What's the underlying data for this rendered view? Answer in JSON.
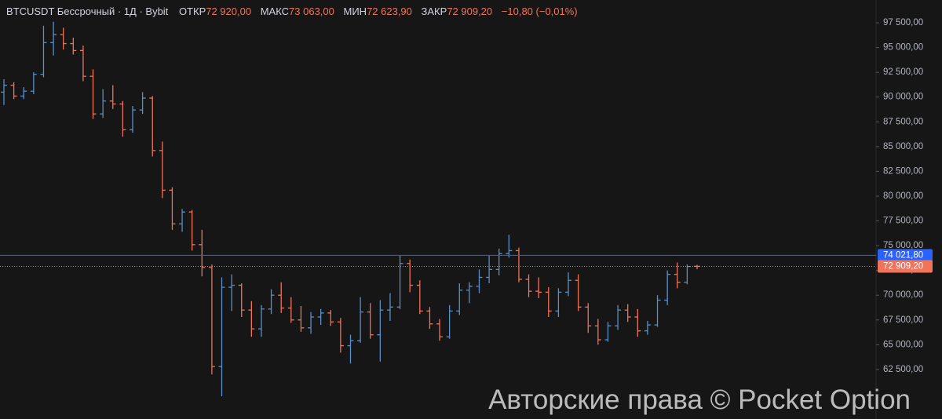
{
  "chart_data": {
    "type": "ohlc",
    "header": {
      "symbol": "BTCUSDT Бессрочный · 1Д · Bybit",
      "open_label": "ОТКР",
      "open": "72 920,00",
      "high_label": "МАКС",
      "high": "73 063,00",
      "low_label": "МИН",
      "low": "72 623,90",
      "close_label": "ЗАКР",
      "close": "72 909,20",
      "change": "−10,80 (−0,01%)"
    },
    "up_color": "#5b8fc7",
    "down_color": "#f0735a",
    "open": [
      90500,
      91200,
      90100,
      90600,
      92300,
      95500,
      96300,
      95400,
      94700,
      92100,
      88300,
      89600,
      89300,
      86700,
      88700,
      89900,
      84600,
      80600,
      77200,
      78400,
      75100,
      72800,
      62800,
      70800,
      71000,
      68500,
      66600,
      68600,
      70000,
      68700,
      67500,
      66700,
      67800,
      68200,
      67300,
      64900,
      65400,
      68300,
      66000,
      68500,
      68800,
      73200,
      71000,
      68400,
      67100,
      65800,
      68400,
      70500,
      70900,
      71800,
      72600,
      74200,
      74500,
      71600,
      70400,
      70300,
      68400,
      70300,
      71500,
      68800,
      66900,
      65500,
      66900,
      68500,
      67800,
      66400,
      67000,
      69500,
      72100,
      71300,
      72920
    ],
    "high": [
      91800,
      91500,
      91000,
      92500,
      97200,
      97600,
      97000,
      96000,
      95200,
      92800,
      90800,
      91200,
      89600,
      89100,
      90500,
      90100,
      85500,
      80900,
      78700,
      78600,
      76600,
      73100,
      71800,
      72100,
      71200,
      69400,
      69000,
      70600,
      71300,
      69800,
      68900,
      68300,
      68600,
      68500,
      67700,
      66000,
      69800,
      69200,
      69500,
      70200,
      74000,
      73600,
      71500,
      68800,
      67600,
      69000,
      71200,
      71300,
      72600,
      74000,
      74700,
      76100,
      74800,
      72100,
      71800,
      70800,
      70700,
      72300,
      72100,
      69200,
      67600,
      67300,
      69000,
      69100,
      68600,
      67400,
      70000,
      72500,
      73300,
      73100,
      73063
    ],
    "low": [
      89200,
      89800,
      89800,
      90300,
      92000,
      94200,
      94800,
      94300,
      91600,
      87800,
      87900,
      88800,
      86000,
      86400,
      88300,
      84000,
      79800,
      76600,
      76400,
      74500,
      71900,
      62000,
      59800,
      68400,
      67800,
      65800,
      65800,
      68100,
      68200,
      67200,
      66300,
      66100,
      67000,
      66900,
      64200,
      63100,
      65200,
      65600,
      63300,
      67400,
      68600,
      70300,
      68100,
      66600,
      65400,
      65600,
      68000,
      69200,
      70200,
      71200,
      72000,
      73800,
      71300,
      69800,
      69700,
      67800,
      67800,
      69900,
      68400,
      66200,
      65000,
      65300,
      66500,
      67300,
      65800,
      66000,
      66800,
      69000,
      70700,
      71100,
      72623.9
    ],
    "close": [
      91200,
      90100,
      90600,
      92300,
      95500,
      96300,
      95400,
      94700,
      92100,
      88300,
      89600,
      89300,
      86700,
      88700,
      89900,
      84600,
      80600,
      77200,
      78400,
      75100,
      72800,
      62800,
      70800,
      71000,
      68500,
      66600,
      68600,
      70000,
      68700,
      67500,
      66700,
      67800,
      68200,
      67300,
      64900,
      65400,
      68300,
      66000,
      68500,
      68800,
      73200,
      71000,
      68400,
      67100,
      65800,
      68400,
      70500,
      70900,
      71800,
      72600,
      74200,
      74500,
      71600,
      70400,
      70300,
      68400,
      70300,
      71500,
      68800,
      66900,
      65500,
      66900,
      68500,
      67800,
      66400,
      67000,
      69500,
      72100,
      71300,
      72900,
      72909.2
    ],
    "ylim": [
      57500,
      99800
    ],
    "yticks": [
      {
        "value": 62500,
        "label": "62 500,00"
      },
      {
        "value": 65000,
        "label": "65 000,00"
      },
      {
        "value": 67500,
        "label": "67 500,00"
      },
      {
        "value": 70000,
        "label": "70 000,00"
      },
      {
        "value": 72500,
        "label": "72 500,00"
      },
      {
        "value": 75000,
        "label": "75 000,00"
      },
      {
        "value": 77500,
        "label": "77 500,00"
      },
      {
        "value": 80000,
        "label": "80 000,00"
      },
      {
        "value": 82500,
        "label": "82 500,00"
      },
      {
        "value": 85000,
        "label": "85 000,00"
      },
      {
        "value": 87500,
        "label": "87 500,00"
      },
      {
        "value": 90000,
        "label": "90 000,00"
      },
      {
        "value": 92500,
        "label": "92 500,00"
      },
      {
        "value": 95000,
        "label": "95 000,00"
      },
      {
        "value": 97500,
        "label": "97 500,00"
      }
    ],
    "hline": {
      "value": 74021.8,
      "label": "74 021,80",
      "color": "#2962ff"
    },
    "last_price": {
      "value": 72909.2,
      "label": "72 909,20",
      "color": "#f0735a"
    },
    "watermark": "Авторские права © Pocket Option"
  }
}
